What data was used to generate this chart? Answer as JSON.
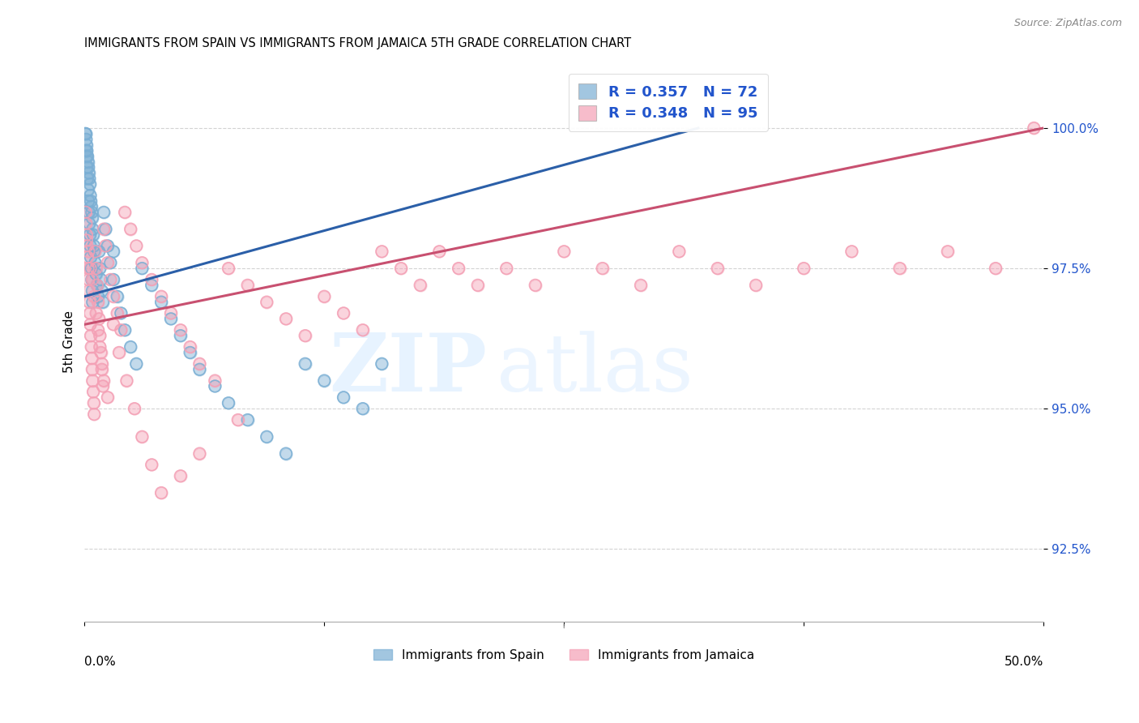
{
  "title": "IMMIGRANTS FROM SPAIN VS IMMIGRANTS FROM JAMAICA 5TH GRADE CORRELATION CHART",
  "source": "Source: ZipAtlas.com",
  "ylabel": "5th Grade",
  "yticks": [
    92.5,
    95.0,
    97.5,
    100.0
  ],
  "ytick_labels": [
    "92.5%",
    "95.0%",
    "97.5%",
    "100.0%"
  ],
  "xlim": [
    0.0,
    50.0
  ],
  "ylim": [
    91.2,
    101.2
  ],
  "spain_R": 0.357,
  "spain_N": 72,
  "jamaica_R": 0.348,
  "jamaica_N": 95,
  "spain_color": "#7BAFD4",
  "jamaica_color": "#F4A0B5",
  "spain_line_color": "#2B5FA8",
  "jamaica_line_color": "#C85070",
  "legend_text_color": "#2255CC",
  "background_color": "#ffffff",
  "grid_color": "#c8c8c8",
  "spain_x": [
    0.05,
    0.08,
    0.1,
    0.12,
    0.15,
    0.18,
    0.2,
    0.22,
    0.25,
    0.28,
    0.3,
    0.32,
    0.35,
    0.38,
    0.4,
    0.42,
    0.45,
    0.48,
    0.5,
    0.55,
    0.6,
    0.65,
    0.7,
    0.75,
    0.8,
    0.85,
    0.9,
    0.95,
    1.0,
    1.1,
    1.2,
    1.35,
    1.5,
    1.7,
    1.9,
    2.1,
    2.4,
    2.7,
    3.0,
    3.5,
    4.0,
    4.5,
    5.0,
    5.5,
    6.0,
    6.8,
    7.5,
    8.5,
    9.5,
    10.5,
    11.5,
    12.5,
    13.5,
    14.5,
    15.5,
    0.05,
    0.08,
    0.1,
    0.12,
    0.15,
    0.18,
    0.2,
    0.22,
    0.25,
    0.28,
    0.3,
    0.32,
    0.35,
    0.38,
    0.4,
    0.42,
    1.5
  ],
  "spain_y": [
    99.9,
    99.8,
    99.7,
    99.6,
    99.5,
    99.4,
    99.3,
    99.2,
    99.1,
    99.0,
    98.8,
    98.7,
    98.6,
    98.5,
    98.4,
    98.2,
    98.1,
    97.9,
    97.8,
    97.6,
    97.4,
    97.2,
    97.0,
    97.8,
    97.5,
    97.3,
    97.1,
    96.9,
    98.5,
    98.2,
    97.9,
    97.6,
    97.3,
    97.0,
    96.7,
    96.4,
    96.1,
    95.8,
    97.5,
    97.2,
    96.9,
    96.6,
    96.3,
    96.0,
    95.7,
    95.4,
    95.1,
    94.8,
    94.5,
    94.2,
    95.8,
    95.5,
    95.2,
    95.0,
    95.8,
    99.9,
    99.6,
    99.5,
    99.3,
    99.1,
    98.9,
    98.7,
    98.5,
    98.3,
    98.1,
    97.9,
    97.7,
    97.5,
    97.3,
    97.1,
    96.9,
    97.8
  ],
  "jamaica_x": [
    0.05,
    0.08,
    0.1,
    0.12,
    0.15,
    0.18,
    0.2,
    0.22,
    0.25,
    0.28,
    0.3,
    0.32,
    0.35,
    0.38,
    0.4,
    0.42,
    0.45,
    0.48,
    0.5,
    0.55,
    0.6,
    0.65,
    0.7,
    0.75,
    0.8,
    0.85,
    0.9,
    0.95,
    1.0,
    1.1,
    1.2,
    1.35,
    1.5,
    1.7,
    1.9,
    2.1,
    2.4,
    2.7,
    3.0,
    3.5,
    4.0,
    4.5,
    5.0,
    5.5,
    6.0,
    6.8,
    7.5,
    8.5,
    9.5,
    10.5,
    11.5,
    12.5,
    13.5,
    14.5,
    15.5,
    16.5,
    17.5,
    18.5,
    19.5,
    20.5,
    22.0,
    23.5,
    25.0,
    27.0,
    29.0,
    31.0,
    33.0,
    35.0,
    37.5,
    40.0,
    42.5,
    45.0,
    47.5,
    49.5,
    0.1,
    0.2,
    0.3,
    0.4,
    0.5,
    0.6,
    0.7,
    0.8,
    0.9,
    1.0,
    1.2,
    1.5,
    1.8,
    2.2,
    2.6,
    3.0,
    3.5,
    4.0,
    5.0,
    6.0,
    8.0
  ],
  "jamaica_y": [
    98.5,
    98.3,
    98.1,
    97.9,
    97.7,
    97.5,
    97.3,
    97.1,
    96.9,
    96.7,
    96.5,
    96.3,
    96.1,
    95.9,
    95.7,
    95.5,
    95.3,
    95.1,
    94.9,
    97.8,
    97.5,
    97.2,
    96.9,
    96.6,
    96.3,
    96.0,
    95.7,
    95.4,
    98.2,
    97.9,
    97.6,
    97.3,
    97.0,
    96.7,
    96.4,
    98.5,
    98.2,
    97.9,
    97.6,
    97.3,
    97.0,
    96.7,
    96.4,
    96.1,
    95.8,
    95.5,
    97.5,
    97.2,
    96.9,
    96.6,
    96.3,
    97.0,
    96.7,
    96.4,
    97.8,
    97.5,
    97.2,
    97.8,
    97.5,
    97.2,
    97.5,
    97.2,
    97.8,
    97.5,
    97.2,
    97.8,
    97.5,
    97.2,
    97.5,
    97.8,
    97.5,
    97.8,
    97.5,
    100.0,
    98.0,
    97.8,
    97.5,
    97.3,
    97.0,
    96.7,
    96.4,
    96.1,
    95.8,
    95.5,
    95.2,
    96.5,
    96.0,
    95.5,
    95.0,
    94.5,
    94.0,
    93.5,
    93.8,
    94.2,
    94.8
  ]
}
